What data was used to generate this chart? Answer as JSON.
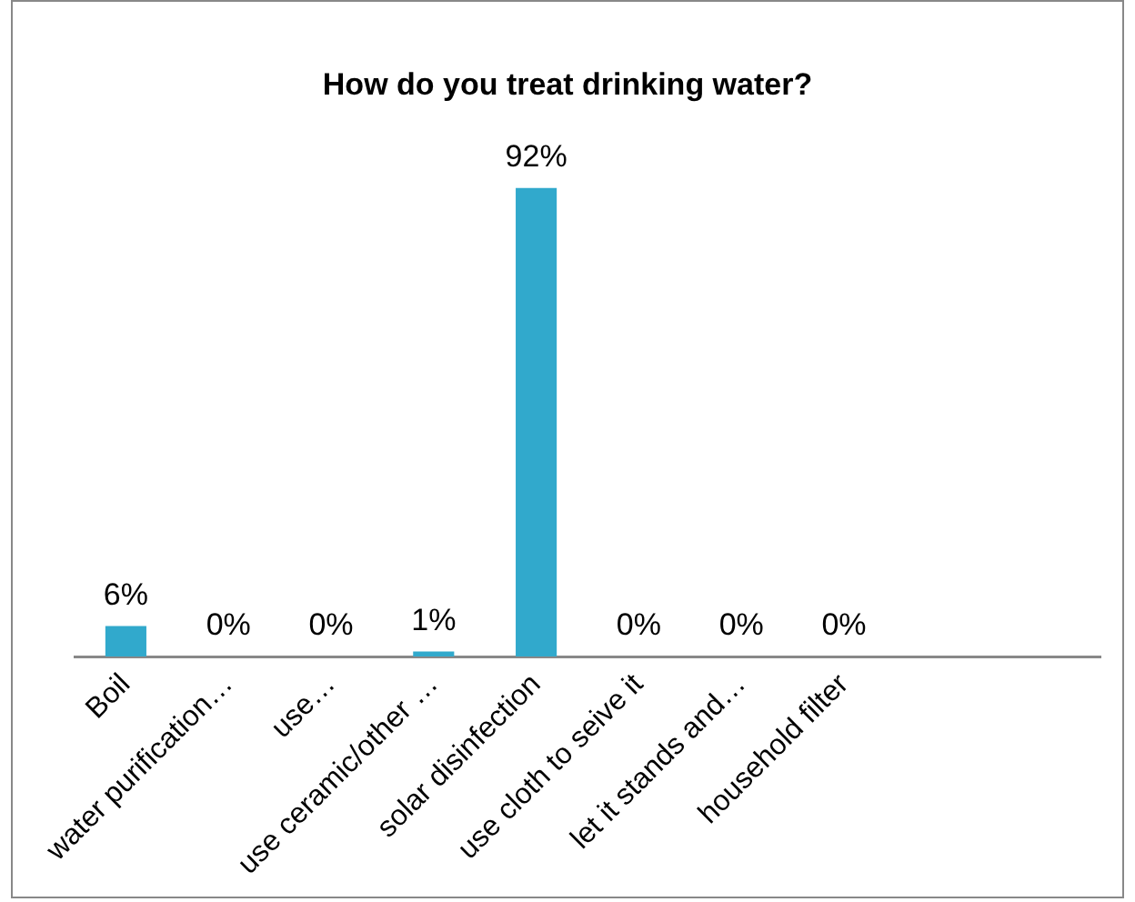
{
  "chart_data": {
    "type": "bar",
    "title": "How do you treat drinking water?",
    "categories": [
      "Boil",
      "water purification…",
      "use…",
      "use ceramic/other …",
      "solar disinfection",
      "use cloth to seive it",
      "let it stands and…",
      "household filter",
      null,
      null
    ],
    "values": [
      6,
      0,
      0,
      1,
      92,
      0,
      0,
      0,
      null,
      null
    ],
    "value_labels": [
      "6%",
      "0%",
      "0%",
      "1%",
      "92%",
      "0%",
      "0%",
      "0%",
      null,
      null
    ],
    "color": "#31a9cc",
    "tick_labels": "x",
    "grid": false,
    "legend": false
  }
}
